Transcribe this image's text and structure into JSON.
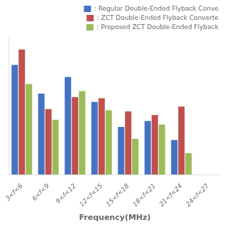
{
  "chart_data": {
    "type": "bar",
    "xlabel": "Frequency(MHz)",
    "categories": [
      "3<f<6",
      "6<f<9",
      "9<f<12",
      "12<f<15",
      "15<f<18",
      "18<f<21",
      "21<f<24",
      "24<f<27"
    ],
    "series": [
      {
        "name": ": Regular Double-Ended Flyback Conve",
        "color": "#4472C4",
        "values": [
          0.92,
          0.68,
          0.82,
          0.61,
          0.4,
          0.45,
          0.29,
          0.0
        ]
      },
      {
        "name": ": ZCT Double-Ended Flyback Converte",
        "color": "#C0504D",
        "values": [
          1.05,
          0.55,
          0.65,
          0.64,
          0.53,
          0.5,
          0.57,
          0.0
        ]
      },
      {
        "name": ": Proposed ZCT Double-Ended Flyback",
        "color": "#9BBB59",
        "values": [
          0.76,
          0.46,
          0.7,
          0.54,
          0.3,
          0.42,
          0.18,
          0.0
        ]
      }
    ],
    "ylim": [
      0,
      1.15
    ],
    "grid": false,
    "legend": "upper right",
    "tick_labels": "x"
  }
}
